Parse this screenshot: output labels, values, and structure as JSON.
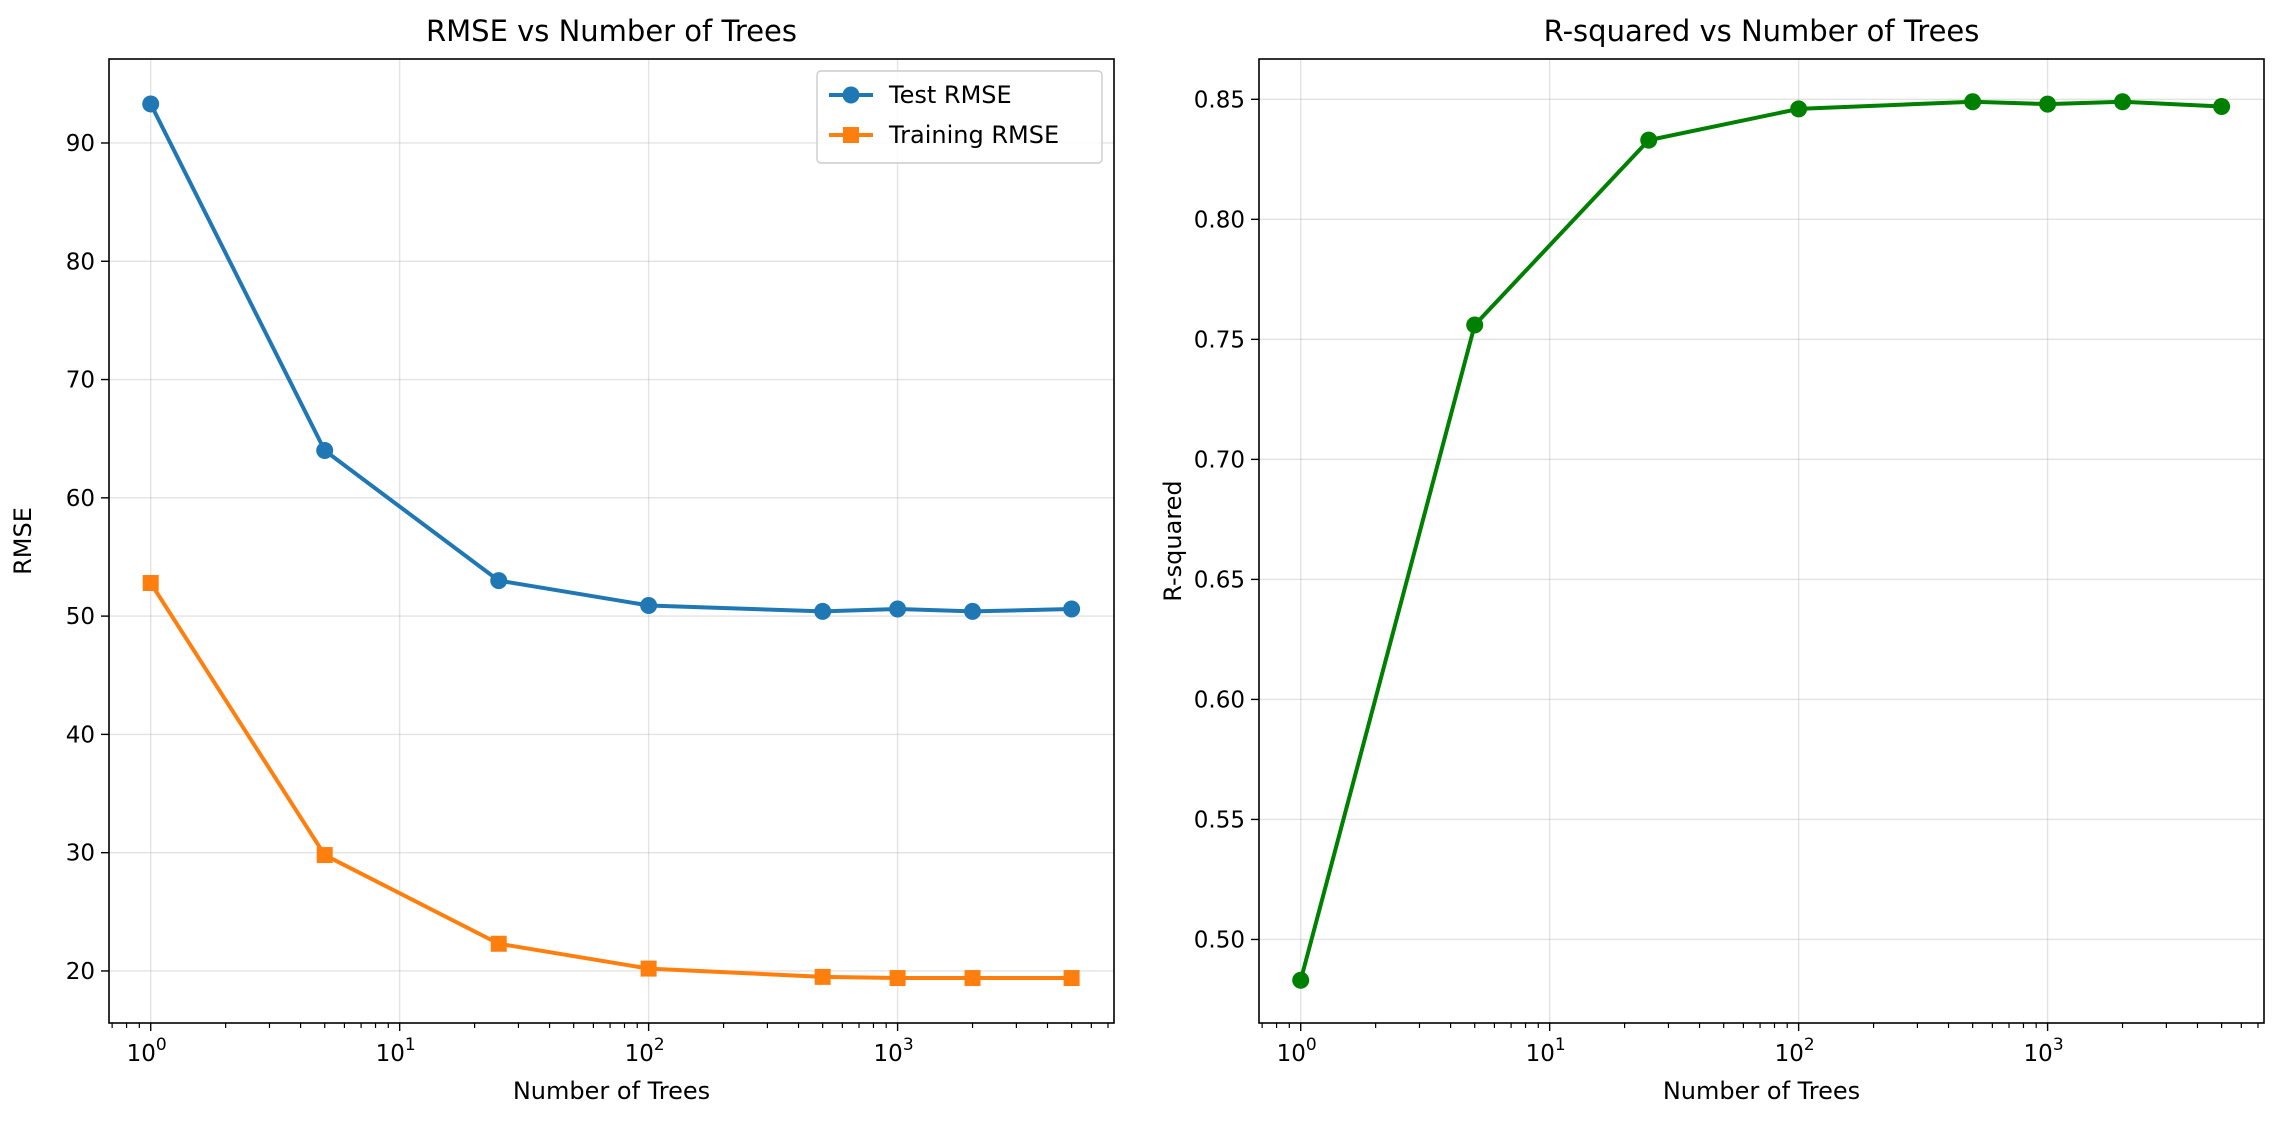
{
  "chart_data": [
    {
      "type": "line",
      "title": "RMSE vs Number of Trees",
      "xlabel": "Number of Trees",
      "ylabel": "RMSE",
      "xscale": "log",
      "xlim": [
        0.68,
        7400
      ],
      "ylim": [
        15.6,
        97.1
      ],
      "grid": true,
      "legend_position": "top-right",
      "x": [
        1,
        5,
        25,
        100,
        500,
        1000,
        2000,
        5000
      ],
      "x_tick_labels": [
        {
          "base": "10",
          "exp": "0"
        },
        {
          "base": "10",
          "exp": "1"
        },
        {
          "base": "10",
          "exp": "2"
        },
        {
          "base": "10",
          "exp": "3"
        }
      ],
      "x_tick_values": [
        1,
        10,
        100,
        1000
      ],
      "y_ticks": [
        20,
        30,
        40,
        50,
        60,
        70,
        80,
        90
      ],
      "series": [
        {
          "name": "Test RMSE",
          "color": "#1f77b4",
          "marker": "circle",
          "values": [
            93.3,
            64.0,
            53.0,
            50.9,
            50.4,
            50.6,
            50.4,
            50.6
          ]
        },
        {
          "name": "Training RMSE",
          "color": "#ff7f0e",
          "marker": "square",
          "values": [
            52.8,
            29.8,
            22.3,
            20.2,
            19.5,
            19.4,
            19.4,
            19.4
          ]
        }
      ]
    },
    {
      "type": "line",
      "title": "R-squared vs Number of Trees",
      "xlabel": "Number of Trees",
      "ylabel": "R-squared",
      "xscale": "log",
      "xlim": [
        0.68,
        7400
      ],
      "ylim": [
        0.4652,
        0.8668
      ],
      "grid": true,
      "x": [
        1,
        5,
        25,
        100,
        500,
        1000,
        2000,
        5000
      ],
      "x_tick_labels": [
        {
          "base": "10",
          "exp": "0"
        },
        {
          "base": "10",
          "exp": "1"
        },
        {
          "base": "10",
          "exp": "2"
        },
        {
          "base": "10",
          "exp": "3"
        }
      ],
      "x_tick_values": [
        1,
        10,
        100,
        1000
      ],
      "y_ticks": [
        0.5,
        0.55,
        0.6,
        0.65,
        0.7,
        0.75,
        0.8,
        0.85
      ],
      "y_tick_labels": [
        "0.50",
        "0.55",
        "0.60",
        "0.65",
        "0.70",
        "0.75",
        "0.80",
        "0.85"
      ],
      "series": [
        {
          "color": "#008000",
          "marker": "circle",
          "values": [
            0.483,
            0.756,
            0.833,
            0.846,
            0.849,
            0.848,
            0.849,
            0.847
          ]
        }
      ]
    }
  ]
}
